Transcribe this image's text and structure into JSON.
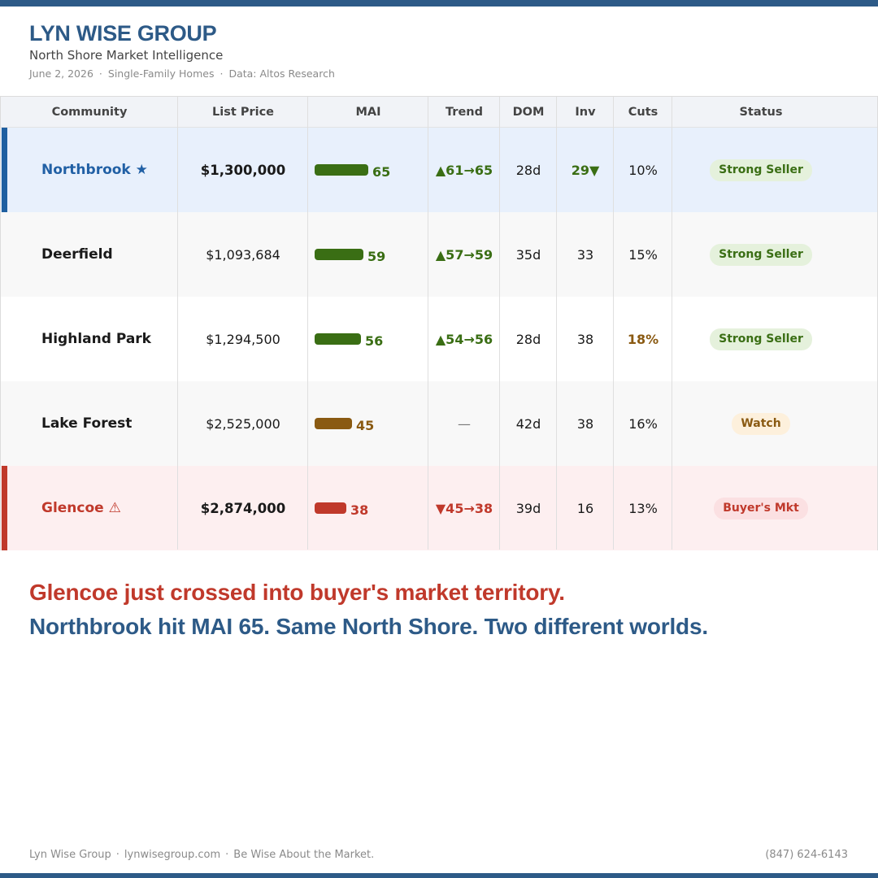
{
  "header": {
    "brand": "LYN WISE GROUP",
    "subtitle": "North Shore Market Intelligence",
    "meta": [
      "June 2, 2026",
      "Single-Family Homes",
      "Data: Altos Research"
    ]
  },
  "colors": {
    "brand": "#2d5a87",
    "green": "#3a6e14",
    "amber": "#8a5a12",
    "red": "#c0392b",
    "highlight_blue": "#e8f0fc",
    "highlight_red": "#fdeff0"
  },
  "table": {
    "columns": [
      "Community",
      "List Price",
      "MAI",
      "Trend",
      "DOM",
      "Inv",
      "Cuts",
      "Status"
    ],
    "rows": [
      {
        "community": "Northbrook ★",
        "price": "$1,300,000",
        "mai": 65,
        "mai_label": "65",
        "trend": "▲61→65",
        "dom": "28d",
        "inv": "29▼",
        "cuts": "10%",
        "status": "Strong Seller"
      },
      {
        "community": "Deerfield",
        "price": "$1,093,684",
        "mai": 59,
        "mai_label": "59",
        "trend": "▲57→59",
        "dom": "35d",
        "inv": "33",
        "cuts": "15%",
        "status": "Strong Seller"
      },
      {
        "community": "Highland Park",
        "price": "$1,294,500",
        "mai": 56,
        "mai_label": "56",
        "trend": "▲54→56",
        "dom": "28d",
        "inv": "38",
        "cuts": "18%",
        "status": "Strong Seller"
      },
      {
        "community": "Lake Forest",
        "price": "$2,525,000",
        "mai": 45,
        "mai_label": "45",
        "trend": "—",
        "dom": "42d",
        "inv": "38",
        "cuts": "16%",
        "status": "Watch"
      },
      {
        "community": "Glencoe ⚠",
        "price": "$2,874,000",
        "mai": 38,
        "mai_label": "38",
        "trend": "▼45→38",
        "dom": "39d",
        "inv": "16",
        "cuts": "13%",
        "status": "Buyer's Mkt"
      }
    ]
  },
  "headline": {
    "line1": "Glencoe just crossed into buyer's market territory.",
    "line2": "Northbrook hit MAI 65. Same North Shore. Two different worlds."
  },
  "footer": {
    "items": [
      "Lyn Wise Group",
      "lynwisegroup.com",
      "Be Wise About the Market."
    ],
    "phone": "(847) 624-6143"
  }
}
